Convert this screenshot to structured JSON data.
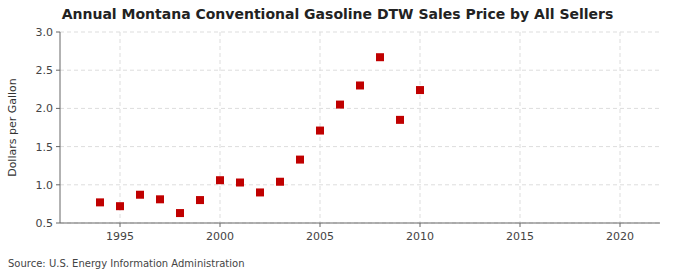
{
  "chart_data": {
    "type": "scatter",
    "title": "Annual Montana Conventional Gasoline DTW Sales Price by All Sellers",
    "y_label": "Dollars per Gallon",
    "source": "Source: U.S. Energy Information Administration",
    "x": [
      1994,
      1995,
      1996,
      1997,
      1998,
      1999,
      2000,
      2001,
      2002,
      2003,
      2004,
      2005,
      2006,
      2007,
      2008,
      2009,
      2010
    ],
    "values": [
      0.77,
      0.72,
      0.87,
      0.81,
      0.63,
      0.8,
      1.06,
      1.03,
      0.9,
      1.04,
      1.33,
      1.71,
      2.05,
      2.3,
      2.67,
      1.85,
      2.24
    ],
    "xlim": [
      1992,
      2022
    ],
    "ylim": [
      0.5,
      3.0
    ],
    "xticks": [
      1995,
      2000,
      2005,
      2010,
      2015,
      2020
    ],
    "yticks": [
      0.5,
      {
        "value": 1.0,
        "label": "1.0"
      },
      1.5,
      {
        "value": 2.0,
        "label": "2.0"
      },
      2.5,
      {
        "value": 3.0,
        "label": "3.0"
      }
    ],
    "color": "#c00000",
    "marker": "square",
    "grid": true
  }
}
